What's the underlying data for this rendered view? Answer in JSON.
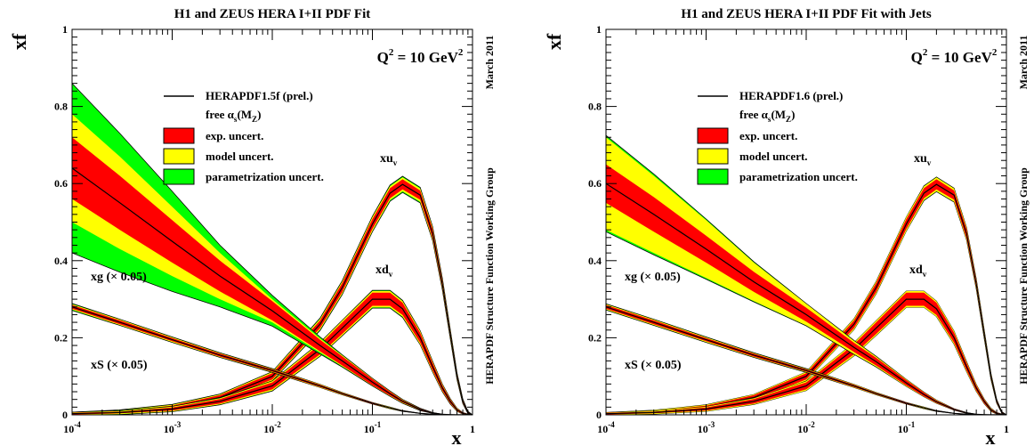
{
  "chart_data": [
    {
      "type": "line",
      "title": "H1 and ZEUS HERA I+II PDF Fit",
      "ylabel": "xf",
      "xlabel": "x",
      "xscale": "log",
      "xlim": [
        0.0001,
        1
      ],
      "ylim": [
        0,
        1
      ],
      "x_ticks": [
        {
          "base": "10",
          "exp": "-4"
        },
        {
          "base": "10",
          "exp": "-3"
        },
        {
          "base": "10",
          "exp": "-2"
        },
        {
          "base": "10",
          "exp": "-1"
        },
        {
          "base": "1",
          "exp": ""
        }
      ],
      "y_ticks": [
        "0",
        "0.2",
        "0.4",
        "0.6",
        "0.8",
        "1"
      ],
      "scale_label": {
        "main": "Q",
        "sup": "2",
        "rest": " = 10 GeV",
        "sup2": "2"
      },
      "side_date": "March 2011",
      "side_group": "HERAPDF Structure Function Working Group",
      "legend": {
        "central": "HERAPDF1.5f (prel.)",
        "alpha_text": {
          "pre": "free ",
          "alpha": "α",
          "sub1": "s",
          "mid": "(M",
          "sub2": "Z",
          "post": ")"
        },
        "bands": [
          {
            "label": "exp. uncert.",
            "color": "#ff0000"
          },
          {
            "label": "model uncert.",
            "color": "#ffff00"
          },
          {
            "label": "parametrization uncert.",
            "color": "#00ff00"
          }
        ]
      },
      "curve_labels": {
        "uv": {
          "main": "xu",
          "sub": "v"
        },
        "dv": {
          "main": "xd",
          "sub": "v"
        },
        "g": "xg (× 0.05)",
        "s": "xS (× 0.05)"
      },
      "x": [
        0.0001,
        0.0003,
        0.001,
        0.003,
        0.01,
        0.03,
        0.05,
        0.1,
        0.15,
        0.2,
        0.3,
        0.4,
        0.5,
        0.6,
        0.7,
        0.8,
        0.9,
        1.0
      ],
      "series": [
        {
          "id": "uv",
          "curve": "xu_v",
          "values": [
            0.003,
            0.008,
            0.02,
            0.045,
            0.1,
            0.235,
            0.33,
            0.495,
            0.575,
            0.598,
            0.57,
            0.47,
            0.34,
            0.21,
            0.1,
            0.035,
            0.006,
            0.0
          ],
          "exp_unc": [
            0.002,
            0.002,
            0.004,
            0.006,
            0.008,
            0.01,
            0.012,
            0.013,
            0.013,
            0.013,
            0.012,
            0.012,
            0.01,
            0.008,
            0.006,
            0.004,
            0.002,
            0.0
          ],
          "model_unc": [
            0.003,
            0.004,
            0.006,
            0.008,
            0.011,
            0.014,
            0.016,
            0.018,
            0.018,
            0.018,
            0.017,
            0.016,
            0.013,
            0.011,
            0.008,
            0.005,
            0.002,
            0.0
          ],
          "par_unc": [
            0.004,
            0.005,
            0.007,
            0.009,
            0.012,
            0.016,
            0.018,
            0.02,
            0.021,
            0.021,
            0.02,
            0.018,
            0.015,
            0.012,
            0.009,
            0.006,
            0.003,
            0.0
          ]
        },
        {
          "id": "dv",
          "curve": "xd_v",
          "values": [
            0.003,
            0.006,
            0.015,
            0.035,
            0.075,
            0.17,
            0.225,
            0.3,
            0.3,
            0.275,
            0.2,
            0.125,
            0.07,
            0.035,
            0.013,
            0.004,
            0.001,
            0.0
          ],
          "exp_unc": [
            0.002,
            0.002,
            0.004,
            0.006,
            0.009,
            0.013,
            0.015,
            0.017,
            0.017,
            0.016,
            0.013,
            0.01,
            0.007,
            0.005,
            0.003,
            0.002,
            0.001,
            0.0
          ],
          "model_unc": [
            0.003,
            0.004,
            0.006,
            0.008,
            0.012,
            0.017,
            0.019,
            0.021,
            0.021,
            0.02,
            0.017,
            0.013,
            0.009,
            0.006,
            0.004,
            0.002,
            0.001,
            0.0
          ],
          "par_unc": [
            0.004,
            0.005,
            0.007,
            0.009,
            0.013,
            0.018,
            0.02,
            0.023,
            0.023,
            0.022,
            0.018,
            0.014,
            0.01,
            0.007,
            0.004,
            0.002,
            0.001,
            0.0
          ]
        },
        {
          "id": "g",
          "curve": "xg × 0.05",
          "values": [
            0.64,
            0.55,
            0.45,
            0.36,
            0.27,
            0.18,
            0.14,
            0.085,
            0.055,
            0.035,
            0.014,
            0.005,
            0.0015,
            0.0005,
            0.0001,
            0.0,
            0.0,
            0.0
          ],
          "exp_unc": [
            0.08,
            0.07,
            0.055,
            0.04,
            0.025,
            0.015,
            0.012,
            0.008,
            0.005,
            0.003,
            0.002,
            0.001,
            0.0,
            0.0,
            0.0,
            0.0,
            0.0,
            0.0
          ],
          "model_unc": [
            0.14,
            0.12,
            0.09,
            0.06,
            0.03,
            0.018,
            0.014,
            0.009,
            0.006,
            0.004,
            0.002,
            0.001,
            0.0,
            0.0,
            0.0,
            0.0,
            0.0,
            0.0
          ],
          "par_unc": [
            0.22,
            0.18,
            0.13,
            0.08,
            0.04,
            0.022,
            0.016,
            0.01,
            0.007,
            0.005,
            0.003,
            0.001,
            0.0,
            0.0,
            0.0,
            0.0,
            0.0,
            0.0
          ]
        },
        {
          "id": "s",
          "curve": "xS × 0.05",
          "values": [
            0.28,
            0.24,
            0.195,
            0.155,
            0.115,
            0.075,
            0.055,
            0.03,
            0.018,
            0.01,
            0.004,
            0.0015,
            0.0005,
            0.0,
            0.0,
            0.0,
            0.0,
            0.0
          ],
          "exp_unc": [
            0.005,
            0.005,
            0.004,
            0.004,
            0.003,
            0.003,
            0.002,
            0.002,
            0.001,
            0.001,
            0.0,
            0.0,
            0.0,
            0.0,
            0.0,
            0.0,
            0.0,
            0.0
          ],
          "model_unc": [
            0.007,
            0.007,
            0.006,
            0.005,
            0.004,
            0.004,
            0.003,
            0.002,
            0.002,
            0.001,
            0.0,
            0.0,
            0.0,
            0.0,
            0.0,
            0.0,
            0.0,
            0.0
          ],
          "par_unc": [
            0.009,
            0.008,
            0.007,
            0.006,
            0.005,
            0.004,
            0.003,
            0.002,
            0.002,
            0.001,
            0.0,
            0.0,
            0.0,
            0.0,
            0.0,
            0.0,
            0.0,
            0.0
          ]
        }
      ]
    },
    {
      "type": "line",
      "title": "H1 and ZEUS HERA I+II PDF Fit with Jets",
      "ylabel": "xf",
      "xlabel": "x",
      "xscale": "log",
      "xlim": [
        0.0001,
        1
      ],
      "ylim": [
        0,
        1
      ],
      "x_ticks": [
        {
          "base": "10",
          "exp": "-4"
        },
        {
          "base": "10",
          "exp": "-3"
        },
        {
          "base": "10",
          "exp": "-2"
        },
        {
          "base": "10",
          "exp": "-1"
        },
        {
          "base": "1",
          "exp": ""
        }
      ],
      "y_ticks": [
        "0",
        "0.2",
        "0.4",
        "0.6",
        "0.8",
        "1"
      ],
      "scale_label": {
        "main": "Q",
        "sup": "2",
        "rest": " = 10 GeV",
        "sup2": "2"
      },
      "side_date": "March 2011",
      "side_group": "HERAPDF Structure Function Working Group",
      "legend": {
        "central": "HERAPDF1.6 (prel.)",
        "alpha_text": {
          "pre": "free ",
          "alpha": "α",
          "sub1": "s",
          "mid": "(M",
          "sub2": "Z",
          "post": ")"
        },
        "bands": [
          {
            "label": "exp. uncert.",
            "color": "#ff0000"
          },
          {
            "label": "model uncert.",
            "color": "#ffff00"
          },
          {
            "label": "parametrization uncert.",
            "color": "#00ff00"
          }
        ]
      },
      "curve_labels": {
        "uv": {
          "main": "xu",
          "sub": "v"
        },
        "dv": {
          "main": "xd",
          "sub": "v"
        },
        "g": "xg (× 0.05)",
        "s": "xS (× 0.05)"
      },
      "x": [
        0.0001,
        0.0003,
        0.001,
        0.003,
        0.01,
        0.03,
        0.05,
        0.1,
        0.15,
        0.2,
        0.3,
        0.4,
        0.5,
        0.6,
        0.7,
        0.8,
        0.9,
        1.0
      ],
      "series": [
        {
          "id": "uv",
          "curve": "xu_v",
          "values": [
            0.003,
            0.008,
            0.02,
            0.045,
            0.1,
            0.235,
            0.33,
            0.495,
            0.575,
            0.598,
            0.57,
            0.47,
            0.34,
            0.21,
            0.1,
            0.035,
            0.006,
            0.0
          ],
          "exp_unc": [
            0.002,
            0.002,
            0.004,
            0.006,
            0.008,
            0.01,
            0.012,
            0.013,
            0.013,
            0.013,
            0.012,
            0.012,
            0.01,
            0.008,
            0.006,
            0.004,
            0.002,
            0.0
          ],
          "model_unc": [
            0.003,
            0.004,
            0.006,
            0.008,
            0.011,
            0.014,
            0.016,
            0.018,
            0.018,
            0.018,
            0.017,
            0.016,
            0.013,
            0.011,
            0.008,
            0.005,
            0.002,
            0.0
          ],
          "par_unc": [
            0.003,
            0.004,
            0.006,
            0.008,
            0.011,
            0.014,
            0.016,
            0.018,
            0.019,
            0.019,
            0.018,
            0.016,
            0.013,
            0.011,
            0.008,
            0.005,
            0.002,
            0.0
          ]
        },
        {
          "id": "dv",
          "curve": "xd_v",
          "values": [
            0.003,
            0.006,
            0.015,
            0.035,
            0.075,
            0.17,
            0.225,
            0.3,
            0.3,
            0.275,
            0.2,
            0.125,
            0.07,
            0.035,
            0.013,
            0.004,
            0.001,
            0.0
          ],
          "exp_unc": [
            0.002,
            0.002,
            0.004,
            0.006,
            0.009,
            0.013,
            0.015,
            0.017,
            0.017,
            0.016,
            0.013,
            0.01,
            0.007,
            0.005,
            0.003,
            0.002,
            0.001,
            0.0
          ],
          "model_unc": [
            0.003,
            0.004,
            0.006,
            0.008,
            0.012,
            0.017,
            0.019,
            0.021,
            0.021,
            0.02,
            0.017,
            0.013,
            0.009,
            0.006,
            0.004,
            0.002,
            0.001,
            0.0
          ],
          "par_unc": [
            0.003,
            0.004,
            0.006,
            0.008,
            0.012,
            0.017,
            0.019,
            0.021,
            0.021,
            0.02,
            0.017,
            0.013,
            0.009,
            0.006,
            0.004,
            0.002,
            0.001,
            0.0
          ]
        },
        {
          "id": "g",
          "curve": "xg × 0.05",
          "values": [
            0.6,
            0.52,
            0.43,
            0.345,
            0.26,
            0.175,
            0.138,
            0.083,
            0.053,
            0.034,
            0.014,
            0.005,
            0.0015,
            0.0005,
            0.0001,
            0.0,
            0.0,
            0.0
          ],
          "exp_unc": [
            0.05,
            0.045,
            0.035,
            0.026,
            0.018,
            0.012,
            0.01,
            0.007,
            0.005,
            0.003,
            0.002,
            0.001,
            0.0,
            0.0,
            0.0,
            0.0,
            0.0,
            0.0
          ],
          "model_unc": [
            0.12,
            0.1,
            0.075,
            0.05,
            0.028,
            0.017,
            0.013,
            0.009,
            0.006,
            0.004,
            0.002,
            0.001,
            0.0,
            0.0,
            0.0,
            0.0,
            0.0,
            0.0
          ],
          "par_unc": [
            0.125,
            0.105,
            0.078,
            0.052,
            0.029,
            0.018,
            0.014,
            0.009,
            0.006,
            0.004,
            0.002,
            0.001,
            0.0,
            0.0,
            0.0,
            0.0,
            0.0,
            0.0
          ]
        },
        {
          "id": "s",
          "curve": "xS × 0.05",
          "values": [
            0.28,
            0.24,
            0.195,
            0.155,
            0.115,
            0.075,
            0.055,
            0.03,
            0.018,
            0.01,
            0.004,
            0.0015,
            0.0005,
            0.0,
            0.0,
            0.0,
            0.0,
            0.0
          ],
          "exp_unc": [
            0.005,
            0.005,
            0.004,
            0.004,
            0.003,
            0.003,
            0.002,
            0.002,
            0.001,
            0.001,
            0.0,
            0.0,
            0.0,
            0.0,
            0.0,
            0.0,
            0.0,
            0.0
          ],
          "model_unc": [
            0.007,
            0.007,
            0.006,
            0.005,
            0.004,
            0.004,
            0.003,
            0.002,
            0.002,
            0.001,
            0.0,
            0.0,
            0.0,
            0.0,
            0.0,
            0.0,
            0.0,
            0.0
          ],
          "par_unc": [
            0.008,
            0.008,
            0.007,
            0.006,
            0.005,
            0.004,
            0.003,
            0.002,
            0.002,
            0.001,
            0.0,
            0.0,
            0.0,
            0.0,
            0.0,
            0.0,
            0.0,
            0.0
          ]
        }
      ]
    }
  ]
}
